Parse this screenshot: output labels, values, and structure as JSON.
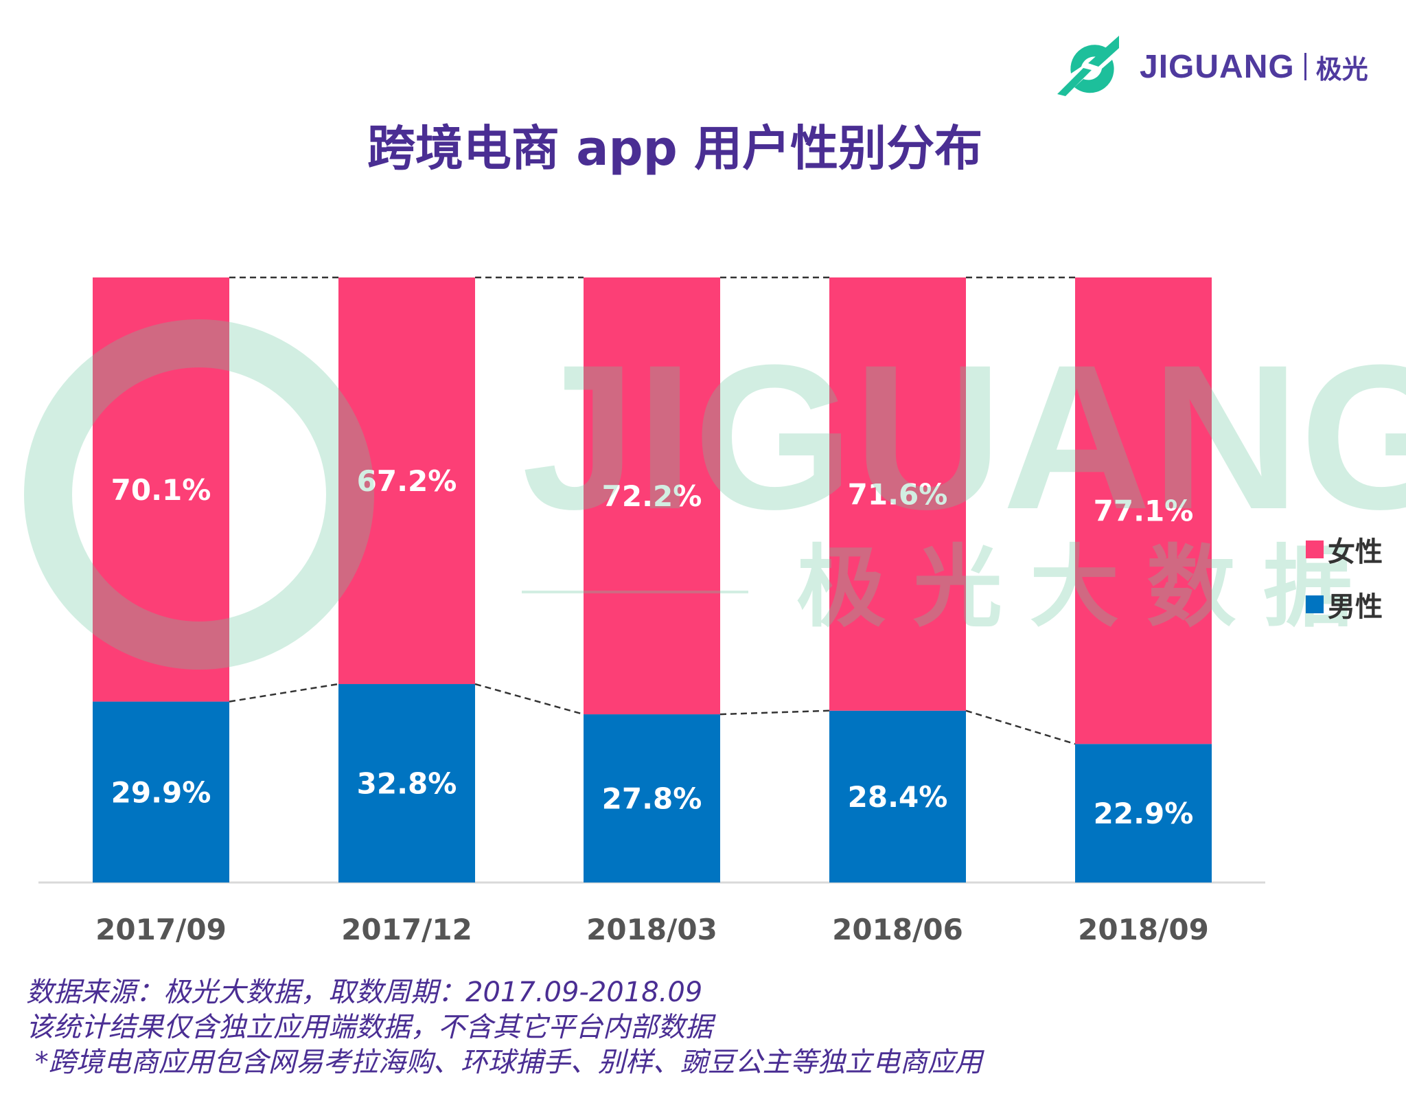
{
  "title": "跨境电商 app 用户性别分布",
  "logo": {
    "text": "JIGUANG",
    "cn": "极光"
  },
  "watermark": {
    "text": "JIGUANG",
    "cn": "极光大数据"
  },
  "colors": {
    "female": "#fc3f76",
    "male": "#0074c1",
    "title": "#4a2e93"
  },
  "chart_data": {
    "type": "bar",
    "stacked": true,
    "percent": true,
    "categories": [
      "2017/09",
      "2017/12",
      "2018/03",
      "2018/06",
      "2018/09"
    ],
    "series": [
      {
        "name": "男性",
        "values": [
          29.9,
          32.8,
          27.8,
          28.4,
          22.9
        ],
        "labels": [
          "29.9%",
          "32.8%",
          "27.8%",
          "28.4%",
          "22.9%"
        ]
      },
      {
        "name": "女性",
        "values": [
          70.1,
          67.2,
          72.2,
          71.6,
          77.1
        ],
        "labels": [
          "70.1%",
          "67.2%",
          "72.2%",
          "71.6%",
          "77.1%"
        ]
      }
    ],
    "ylim": [
      0,
      100
    ],
    "legend": "right",
    "grid": false
  },
  "legend": [
    {
      "label": "女性"
    },
    {
      "label": "男性"
    }
  ],
  "notes": [
    "数据来源：极光大数据，取数周期：2017.09-2018.09",
    "该统计结果仅含独立应用端数据，不含其它平台内部数据",
    " *跨境电商应用包含网易考拉海购、环球捕手、别样、豌豆公主等独立电商应用"
  ]
}
